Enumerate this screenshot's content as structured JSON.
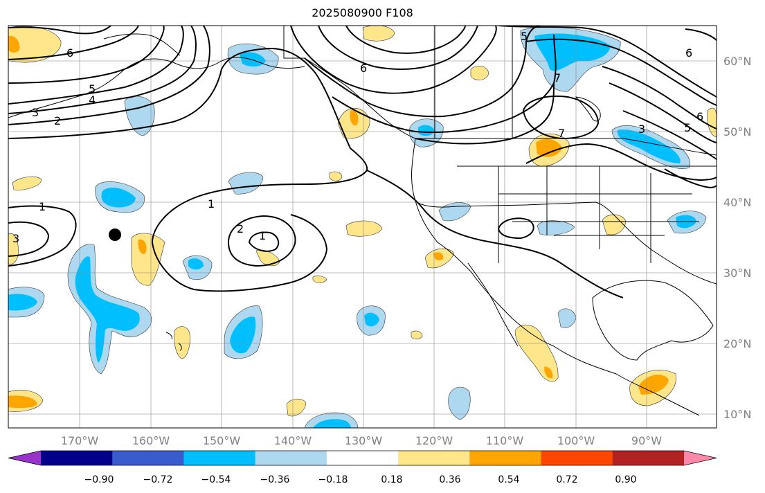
{
  "title": "2025080900 F108",
  "map": {
    "longitude_labels": [
      "170°W",
      "160°W",
      "150°W",
      "140°W",
      "130°W",
      "120°W",
      "110°W",
      "100°W",
      "90°W"
    ],
    "latitude_labels": [
      "60°N",
      "50°N",
      "40°N",
      "30°N",
      "20°N",
      "10°N"
    ],
    "grid": true,
    "marker": "black-dot"
  },
  "colorbar": {
    "ticks": [
      "−0.90",
      "−0.72",
      "−0.54",
      "−0.36",
      "−0.18",
      "0.18",
      "0.36",
      "0.54",
      "0.72",
      "0.90"
    ],
    "colors": [
      "#9932cc",
      "#00008b",
      "#3a5bcd",
      "#00bfff",
      "#add8f0",
      "#ffffff",
      "#ffe68a",
      "#ffa500",
      "#ff4500",
      "#b22222",
      "#ff88aa"
    ]
  },
  "contour_labels": [
    "6",
    "5",
    "4",
    "3",
    "2",
    "1",
    "3",
    "2",
    "1",
    "6",
    "6",
    "5",
    "7",
    "7",
    "3",
    "5",
    "6",
    "1"
  ]
}
